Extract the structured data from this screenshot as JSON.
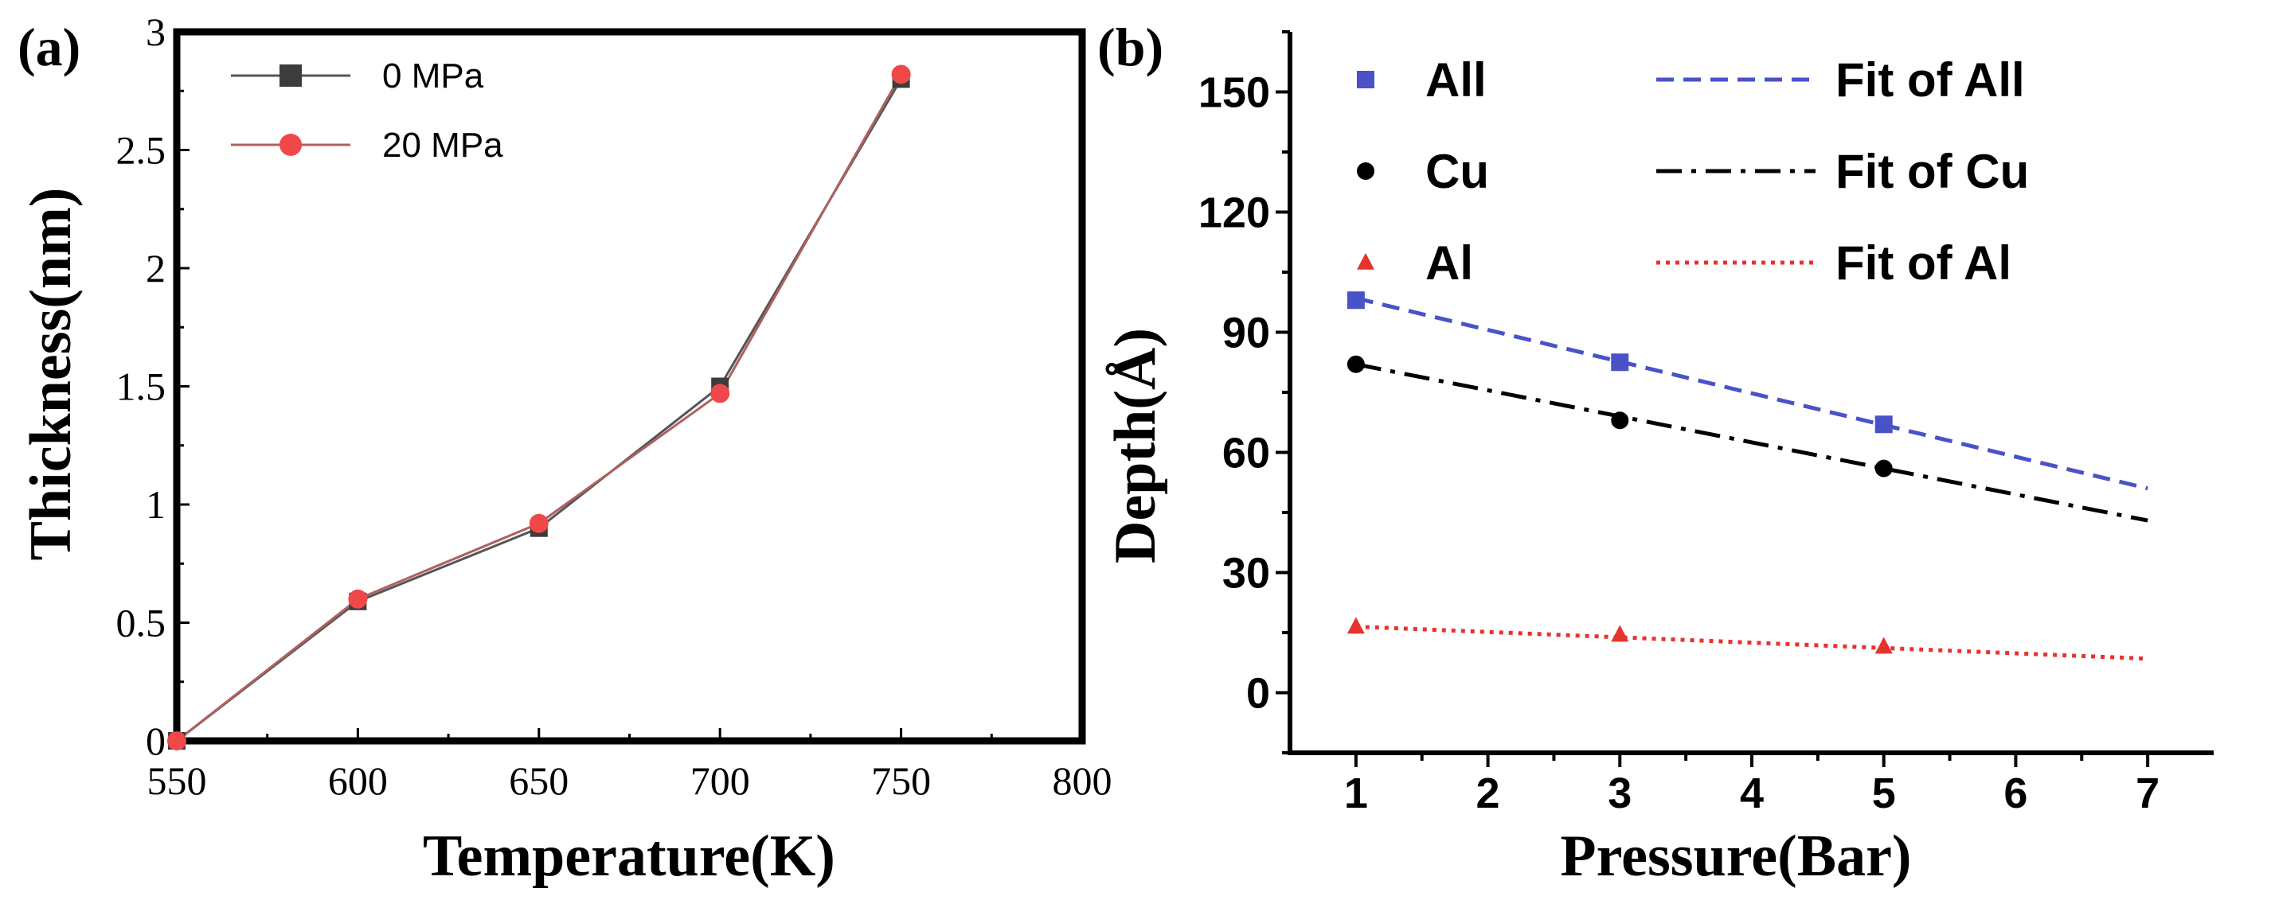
{
  "chart_data": [
    {
      "panel_label": "(a)",
      "type": "line",
      "xlabel": "Temperature(K)",
      "ylabel": "Thickness(nm)",
      "xlim": [
        550,
        800
      ],
      "ylim": [
        0,
        3
      ],
      "x_ticks": [
        550,
        600,
        650,
        700,
        750,
        800
      ],
      "x_tick_labels": [
        "550",
        "600",
        "650",
        "700",
        "750",
        "800"
      ],
      "y_ticks": [
        0,
        0.5,
        1,
        1.5,
        2,
        2.5,
        3
      ],
      "y_tick_labels": [
        "0",
        "0.5",
        "1",
        "1.5",
        "2",
        "2.5",
        "3"
      ],
      "grid": false,
      "legend_position": "top-left",
      "series": [
        {
          "name": "0 MPa",
          "marker": "square",
          "color": "#3c3c3c",
          "line_color": "#555555",
          "x": [
            550,
            600,
            650,
            700,
            750
          ],
          "y": [
            0,
            0.59,
            0.9,
            1.5,
            2.8
          ]
        },
        {
          "name": "20 MPa",
          "marker": "circle",
          "color": "#f04848",
          "line_color": "#b06060",
          "x": [
            550,
            600,
            650,
            700,
            750
          ],
          "y": [
            0,
            0.6,
            0.92,
            1.47,
            2.82
          ]
        }
      ]
    },
    {
      "panel_label": "(b)",
      "type": "scatter",
      "xlabel": "Pressure(Bar)",
      "ylabel": "Depth(Å)",
      "xlim": [
        0.5,
        7.5
      ],
      "ylim": [
        -15,
        165
      ],
      "x_ticks": [
        1,
        2,
        3,
        4,
        5,
        6,
        7
      ],
      "x_tick_labels": [
        "1",
        "2",
        "3",
        "4",
        "5",
        "6",
        "7"
      ],
      "y_ticks": [
        0,
        30,
        60,
        90,
        120,
        150
      ],
      "y_tick_labels": [
        "0",
        "30",
        "60",
        "90",
        "120",
        "150"
      ],
      "grid": false,
      "legend_position": "top",
      "series": [
        {
          "name": "All",
          "marker": "square",
          "color": "#4a52c8",
          "x": [
            1,
            3,
            5
          ],
          "y": [
            98,
            82.5,
            67
          ]
        },
        {
          "name": "Cu",
          "marker": "circle",
          "color": "#000000",
          "x": [
            1,
            3,
            5
          ],
          "y": [
            82,
            68,
            56
          ]
        },
        {
          "name": "Al",
          "marker": "triangle",
          "color": "#e8322e",
          "x": [
            1,
            3,
            5
          ],
          "y": [
            16.5,
            14.5,
            11.5
          ]
        }
      ],
      "fits": [
        {
          "name": "Fit of All",
          "dash": "dashed",
          "color": "#4a52c8",
          "x": [
            1,
            7
          ],
          "y": [
            98.5,
            51
          ]
        },
        {
          "name": "Fit of Cu",
          "dash": "dashdot",
          "color": "#000000",
          "x": [
            1,
            7
          ],
          "y": [
            82,
            43
          ]
        },
        {
          "name": "Fit of Al",
          "dash": "dotted",
          "color": "#e8322e",
          "x": [
            1,
            7
          ],
          "y": [
            16.5,
            8.5
          ]
        }
      ]
    }
  ]
}
